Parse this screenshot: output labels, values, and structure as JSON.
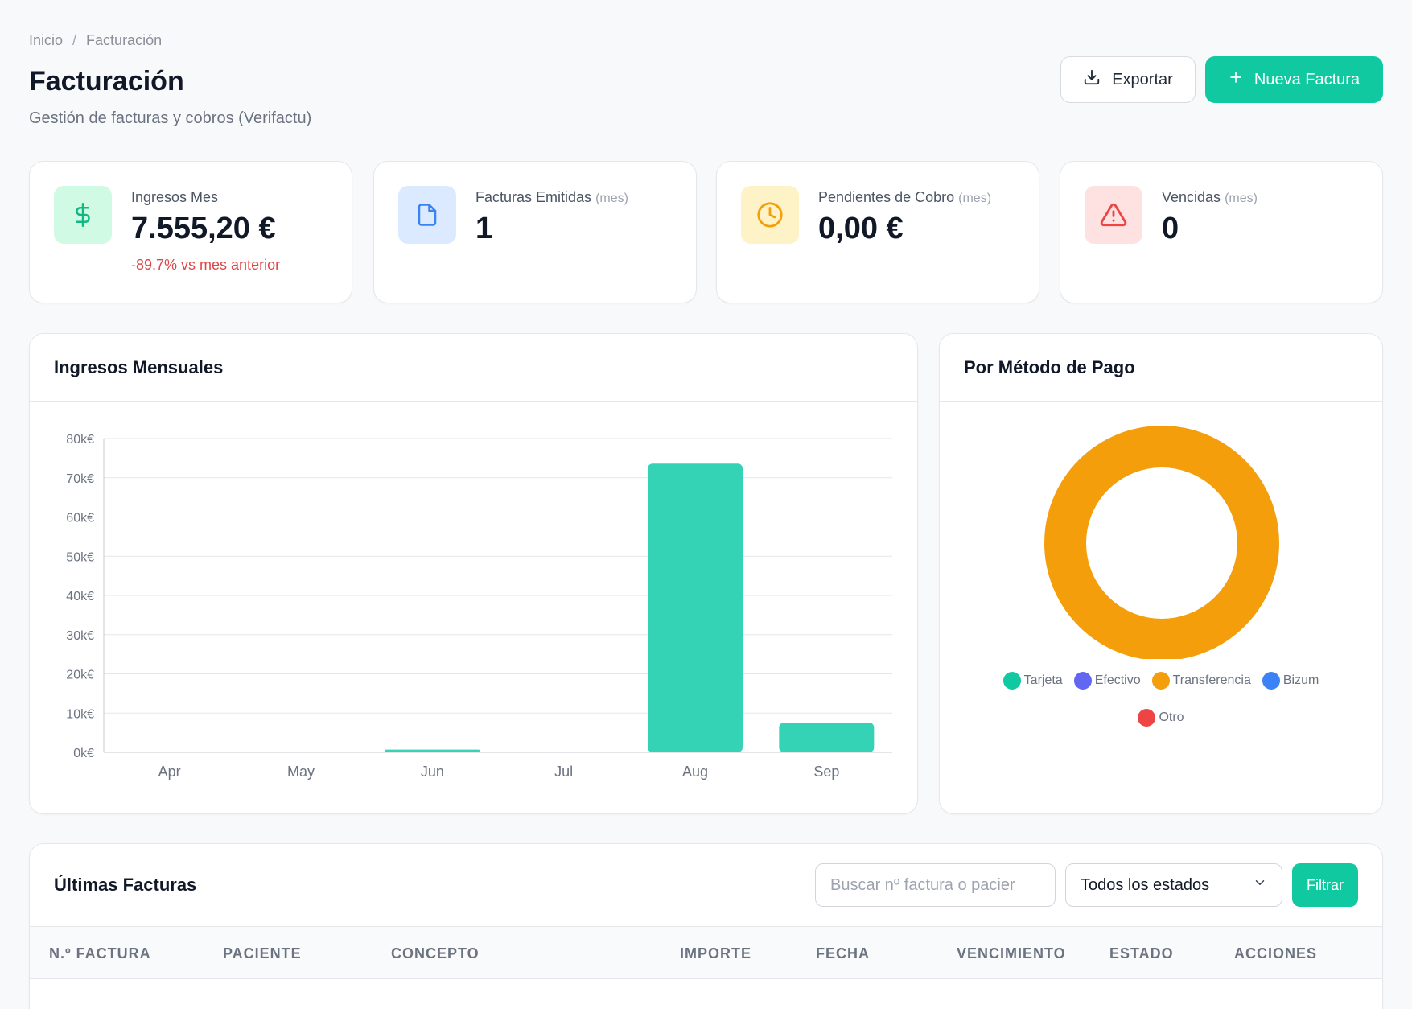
{
  "breadcrumb": {
    "home": "Inicio",
    "separator": "/",
    "current": "Facturación"
  },
  "header": {
    "title": "Facturación",
    "subtitle": "Gestión de facturas y cobros (Verifactu)",
    "export_label": "Exportar",
    "new_label": "Nueva Factura"
  },
  "stats": {
    "income": {
      "label": "Ingresos Mes",
      "value": "7.555,20 €",
      "delta": "-89.7% vs mes anterior",
      "icon": "dollar-icon"
    },
    "issued": {
      "label": "Facturas Emitidas",
      "note": "(mes)",
      "value": "1",
      "icon": "file-icon"
    },
    "pending": {
      "label": "Pendientes de Cobro",
      "note": "(mes)",
      "value": "0,00 €",
      "icon": "clock-icon"
    },
    "overdue": {
      "label": "Vencidas",
      "note": "(mes)",
      "value": "0",
      "icon": "alert-triangle-icon"
    }
  },
  "monthly_panel": {
    "title": "Ingresos Mensuales"
  },
  "payment_panel": {
    "title": "Por Método de Pago"
  },
  "chart_data": [
    {
      "type": "bar",
      "title": "Ingresos Mensuales",
      "categories": [
        "Apr",
        "May",
        "Jun",
        "Jul",
        "Aug",
        "Sep"
      ],
      "values": [
        0,
        0,
        700,
        0,
        73600,
        7555.2
      ],
      "yticks": [
        "0k€",
        "10k€",
        "20k€",
        "30k€",
        "40k€",
        "50k€",
        "60k€",
        "70k€",
        "80k€"
      ],
      "ylim": [
        0,
        80000
      ],
      "grid": true,
      "color": "#34d3b6"
    },
    {
      "type": "pie",
      "title": "Por Método de Pago",
      "labels": [
        "Tarjeta",
        "Efectivo",
        "Transferencia",
        "Bizum",
        "Otro"
      ],
      "values": [
        0,
        0,
        100,
        0,
        0
      ],
      "colors": [
        "#10c9a0",
        "#6366f1",
        "#f59e0b",
        "#3b82f6",
        "#ef4444"
      ],
      "donut": true,
      "legend": "bottom"
    }
  ],
  "invoices": {
    "title": "Últimas Facturas",
    "search_placeholder": "Buscar nº factura o pacier",
    "status_filter": "Todos los estados",
    "filter_label": "Filtrar",
    "columns": [
      "N.º FACTURA",
      "PACIENTE",
      "CONCEPTO",
      "IMPORTE",
      "FECHA",
      "VENCIMIENTO",
      "ESTADO",
      "ACCIONES"
    ]
  },
  "colors": {
    "accent": "#10c9a0",
    "danger": "#e04545",
    "donut": "#f59e0b"
  }
}
